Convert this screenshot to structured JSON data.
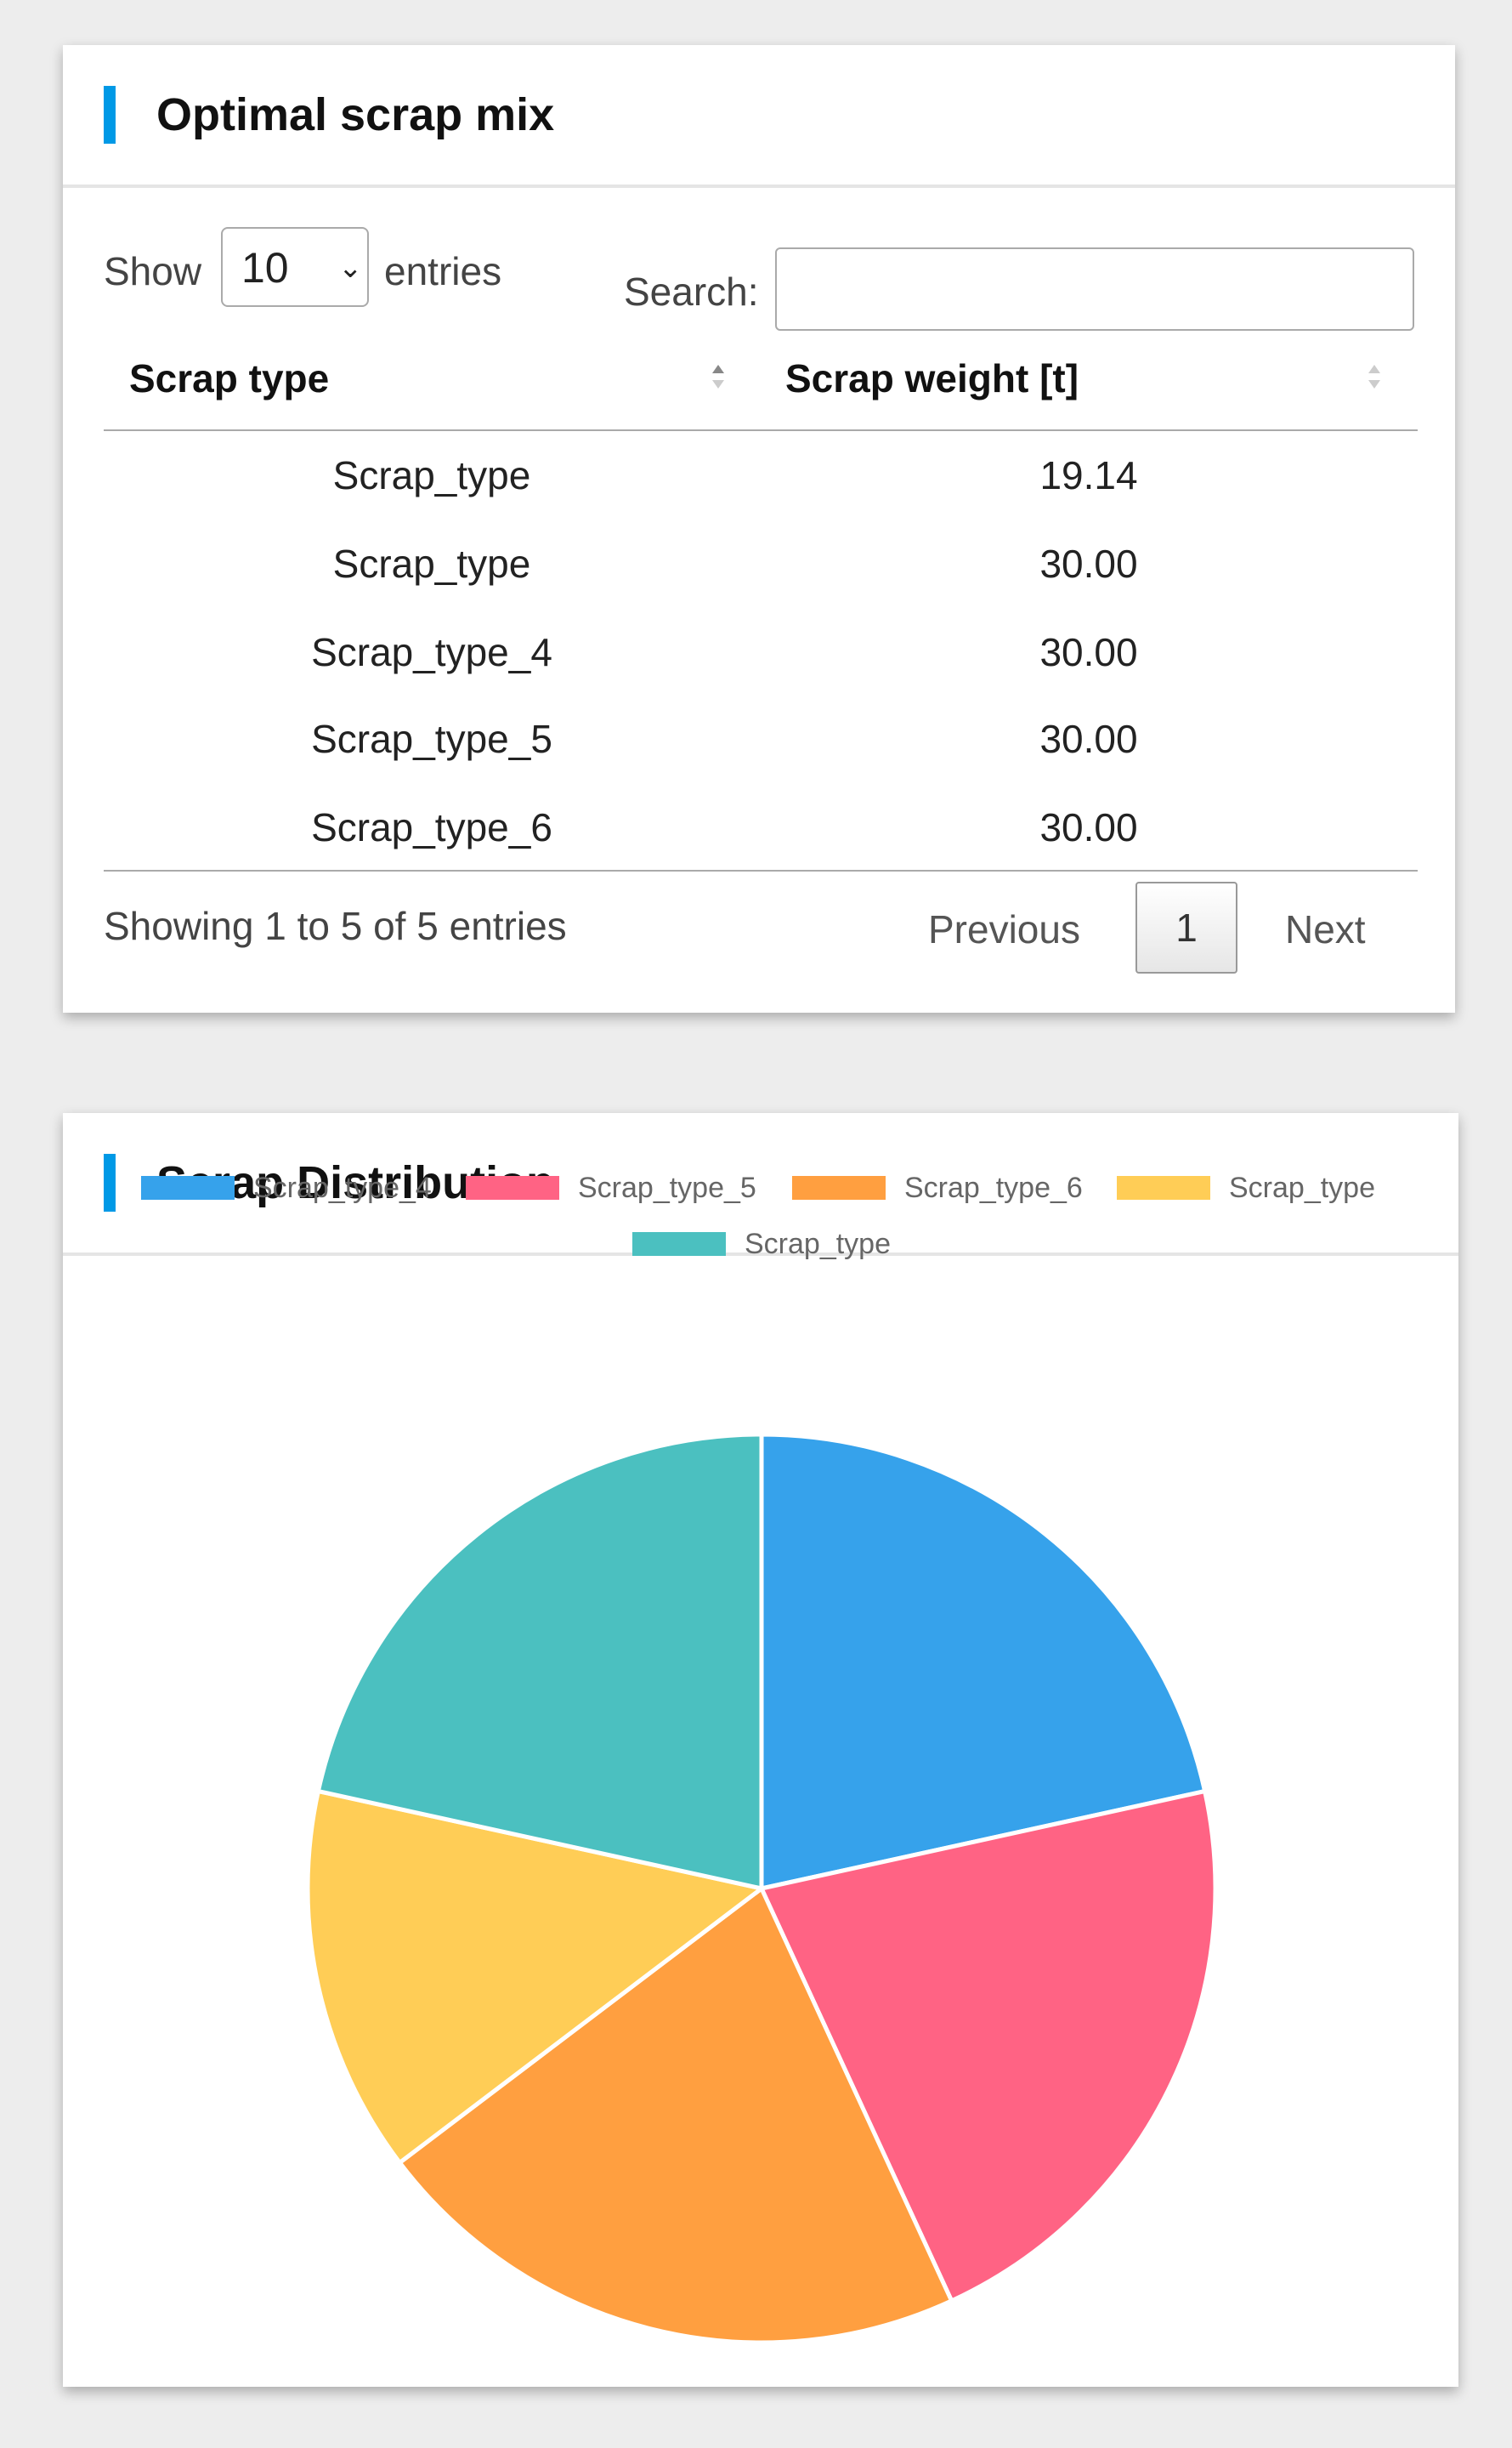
{
  "table_card": {
    "title": "Optimal scrap mix",
    "show_label": "Show",
    "page_length": "10",
    "entries_label": "entries",
    "search_label": "Search:",
    "search_value": "",
    "columns": [
      "Scrap type",
      "Scrap weight [t]"
    ],
    "rows": [
      [
        "Scrap_type",
        "19.14"
      ],
      [
        "Scrap_type",
        "30.00"
      ],
      [
        "Scrap_type_4",
        "30.00"
      ],
      [
        "Scrap_type_5",
        "30.00"
      ],
      [
        "Scrap_type_6",
        "30.00"
      ]
    ],
    "info": "Showing 1 to 5 of 5 entries",
    "pager": {
      "previous": "Previous",
      "current": "1",
      "next": "Next"
    }
  },
  "chart_card": {
    "title": "Scrap Distribution"
  },
  "chart_data": {
    "type": "pie",
    "labels": [
      "Scrap_type_4",
      "Scrap_type_5",
      "Scrap_type_6",
      "Scrap_type",
      "Scrap_type"
    ],
    "values": [
      30.0,
      30.0,
      30.0,
      19.14,
      30.0
    ],
    "colors": [
      "#36a2eb",
      "#ff6384",
      "#ff9f40",
      "#ffcd56",
      "#4bc0c0"
    ],
    "legend_position": "top"
  }
}
